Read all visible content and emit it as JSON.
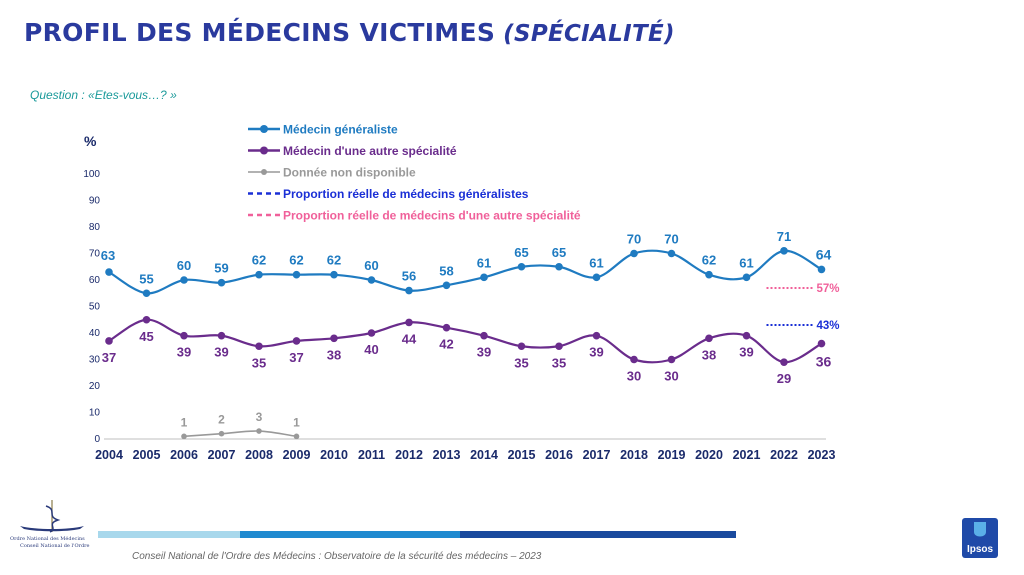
{
  "header": {
    "title": "PROFIL DES MÉDECINS VICTIMES",
    "subtitle": "(SPÉCIALITÉ)",
    "question": "Question : «Etes-vous…?  »"
  },
  "footer": {
    "source": "Conseil National de l'Ordre des Médecins : Observatoire de la sécurité des médecins – 2023",
    "org_line1": "Ordre National des Médecins",
    "org_line2": "Conseil National de l'Ordre",
    "brand": "Ipsos"
  },
  "colors": {
    "generaliste": "#1f7bc1",
    "autre": "#6a2c8c",
    "nd": "#999999",
    "reel_generaliste": "#1a2fd6",
    "reel_autre": "#f0609a",
    "title": "#2a3a9e"
  },
  "chart_data": {
    "type": "line",
    "ylabel": "%",
    "ylim": [
      0,
      100
    ],
    "yticks": [
      0,
      10,
      20,
      30,
      40,
      50,
      60,
      70,
      80,
      90,
      100
    ],
    "x": [
      "2004",
      "2005",
      "2006",
      "2007",
      "2008",
      "2009",
      "2010",
      "2011",
      "2012",
      "2013",
      "2014",
      "2015",
      "2016",
      "2017",
      "2018",
      "2019",
      "2020",
      "2021",
      "2022",
      "2023"
    ],
    "grid": false,
    "legend_position": "top-left",
    "series": [
      {
        "key": "generaliste",
        "name": "Médecin généraliste",
        "values": [
          63,
          55,
          60,
          59,
          62,
          62,
          62,
          60,
          56,
          58,
          61,
          65,
          65,
          61,
          70,
          70,
          62,
          61,
          71,
          64
        ]
      },
      {
        "key": "autre",
        "name": "Médecin d'une autre spécialité",
        "values": [
          37,
          45,
          39,
          39,
          35,
          37,
          38,
          40,
          44,
          42,
          39,
          35,
          35,
          39,
          30,
          30,
          38,
          39,
          29,
          36
        ]
      },
      {
        "key": "nd",
        "name": "Donnée non disponible",
        "values": [
          null,
          null,
          1,
          2,
          3,
          1,
          null,
          null,
          null,
          null,
          null,
          null,
          null,
          null,
          null,
          null,
          null,
          null,
          null,
          null
        ]
      }
    ],
    "reference_lines": [
      {
        "key": "reel_generaliste",
        "name": "Proportion réelle de médecins généralistes",
        "value": 43,
        "label": "43%",
        "year": "2023"
      },
      {
        "key": "reel_autre",
        "name": "Proportion réelle de médecins d'une autre spécialité",
        "value": 57,
        "label": "57%",
        "year": "2023"
      }
    ]
  }
}
